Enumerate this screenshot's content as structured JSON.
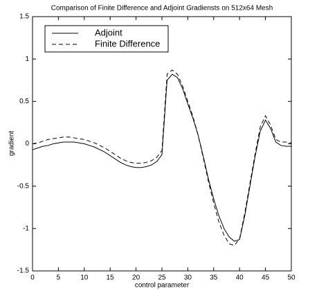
{
  "chart_data": {
    "type": "line",
    "title": "Comparison of Finite Difference and Adjoint Gradiensts on 512x64 Mesh",
    "x_label": "control parameter",
    "y_label": "gradient",
    "x": [
      0,
      1,
      2,
      3,
      4,
      5,
      6,
      7,
      8,
      9,
      10,
      11,
      12,
      13,
      14,
      15,
      16,
      17,
      18,
      19,
      20,
      21,
      22,
      23,
      24,
      25,
      26,
      27,
      28,
      29,
      30,
      31,
      32,
      33,
      34,
      35,
      36,
      37,
      38,
      39,
      40,
      41,
      42,
      43,
      44,
      45,
      46,
      47,
      48,
      49,
      50
    ],
    "series": [
      {
        "name": "Adjoint",
        "color": "#000000",
        "linestyle": "solid",
        "values": [
          -0.07,
          -0.05,
          -0.03,
          -0.02,
          0.0,
          0.01,
          0.02,
          0.02,
          0.02,
          0.01,
          0.0,
          -0.02,
          -0.04,
          -0.07,
          -0.1,
          -0.14,
          -0.18,
          -0.22,
          -0.25,
          -0.27,
          -0.28,
          -0.28,
          -0.27,
          -0.25,
          -0.21,
          -0.13,
          0.75,
          0.82,
          0.78,
          0.65,
          0.47,
          0.3,
          0.1,
          -0.15,
          -0.42,
          -0.65,
          -0.85,
          -1.0,
          -1.1,
          -1.15,
          -1.13,
          -0.85,
          -0.5,
          -0.15,
          0.15,
          0.28,
          0.18,
          0.02,
          -0.02,
          -0.03,
          -0.03
        ]
      },
      {
        "name": "Finite Difference",
        "color": "#000000",
        "linestyle": "dashed",
        "values": [
          0.0,
          0.01,
          0.03,
          0.05,
          0.06,
          0.07,
          0.08,
          0.08,
          0.07,
          0.06,
          0.05,
          0.03,
          0.01,
          -0.02,
          -0.05,
          -0.09,
          -0.13,
          -0.17,
          -0.2,
          -0.22,
          -0.23,
          -0.23,
          -0.22,
          -0.2,
          -0.16,
          -0.08,
          0.82,
          0.87,
          0.82,
          0.68,
          0.5,
          0.32,
          0.1,
          -0.17,
          -0.45,
          -0.7,
          -0.92,
          -1.08,
          -1.18,
          -1.2,
          -1.12,
          -0.82,
          -0.47,
          -0.12,
          0.2,
          0.33,
          0.22,
          0.05,
          0.02,
          0.02,
          0.01
        ]
      }
    ],
    "xlim": [
      0,
      50
    ],
    "xticks": [
      0,
      5,
      10,
      15,
      20,
      25,
      30,
      35,
      40,
      45,
      50
    ],
    "ylim": [
      -1.5,
      1.5
    ],
    "yticks": [
      -1.5,
      -1,
      -0.5,
      0,
      0.5,
      1,
      1.5
    ],
    "grid": false,
    "legend": "upper left"
  }
}
